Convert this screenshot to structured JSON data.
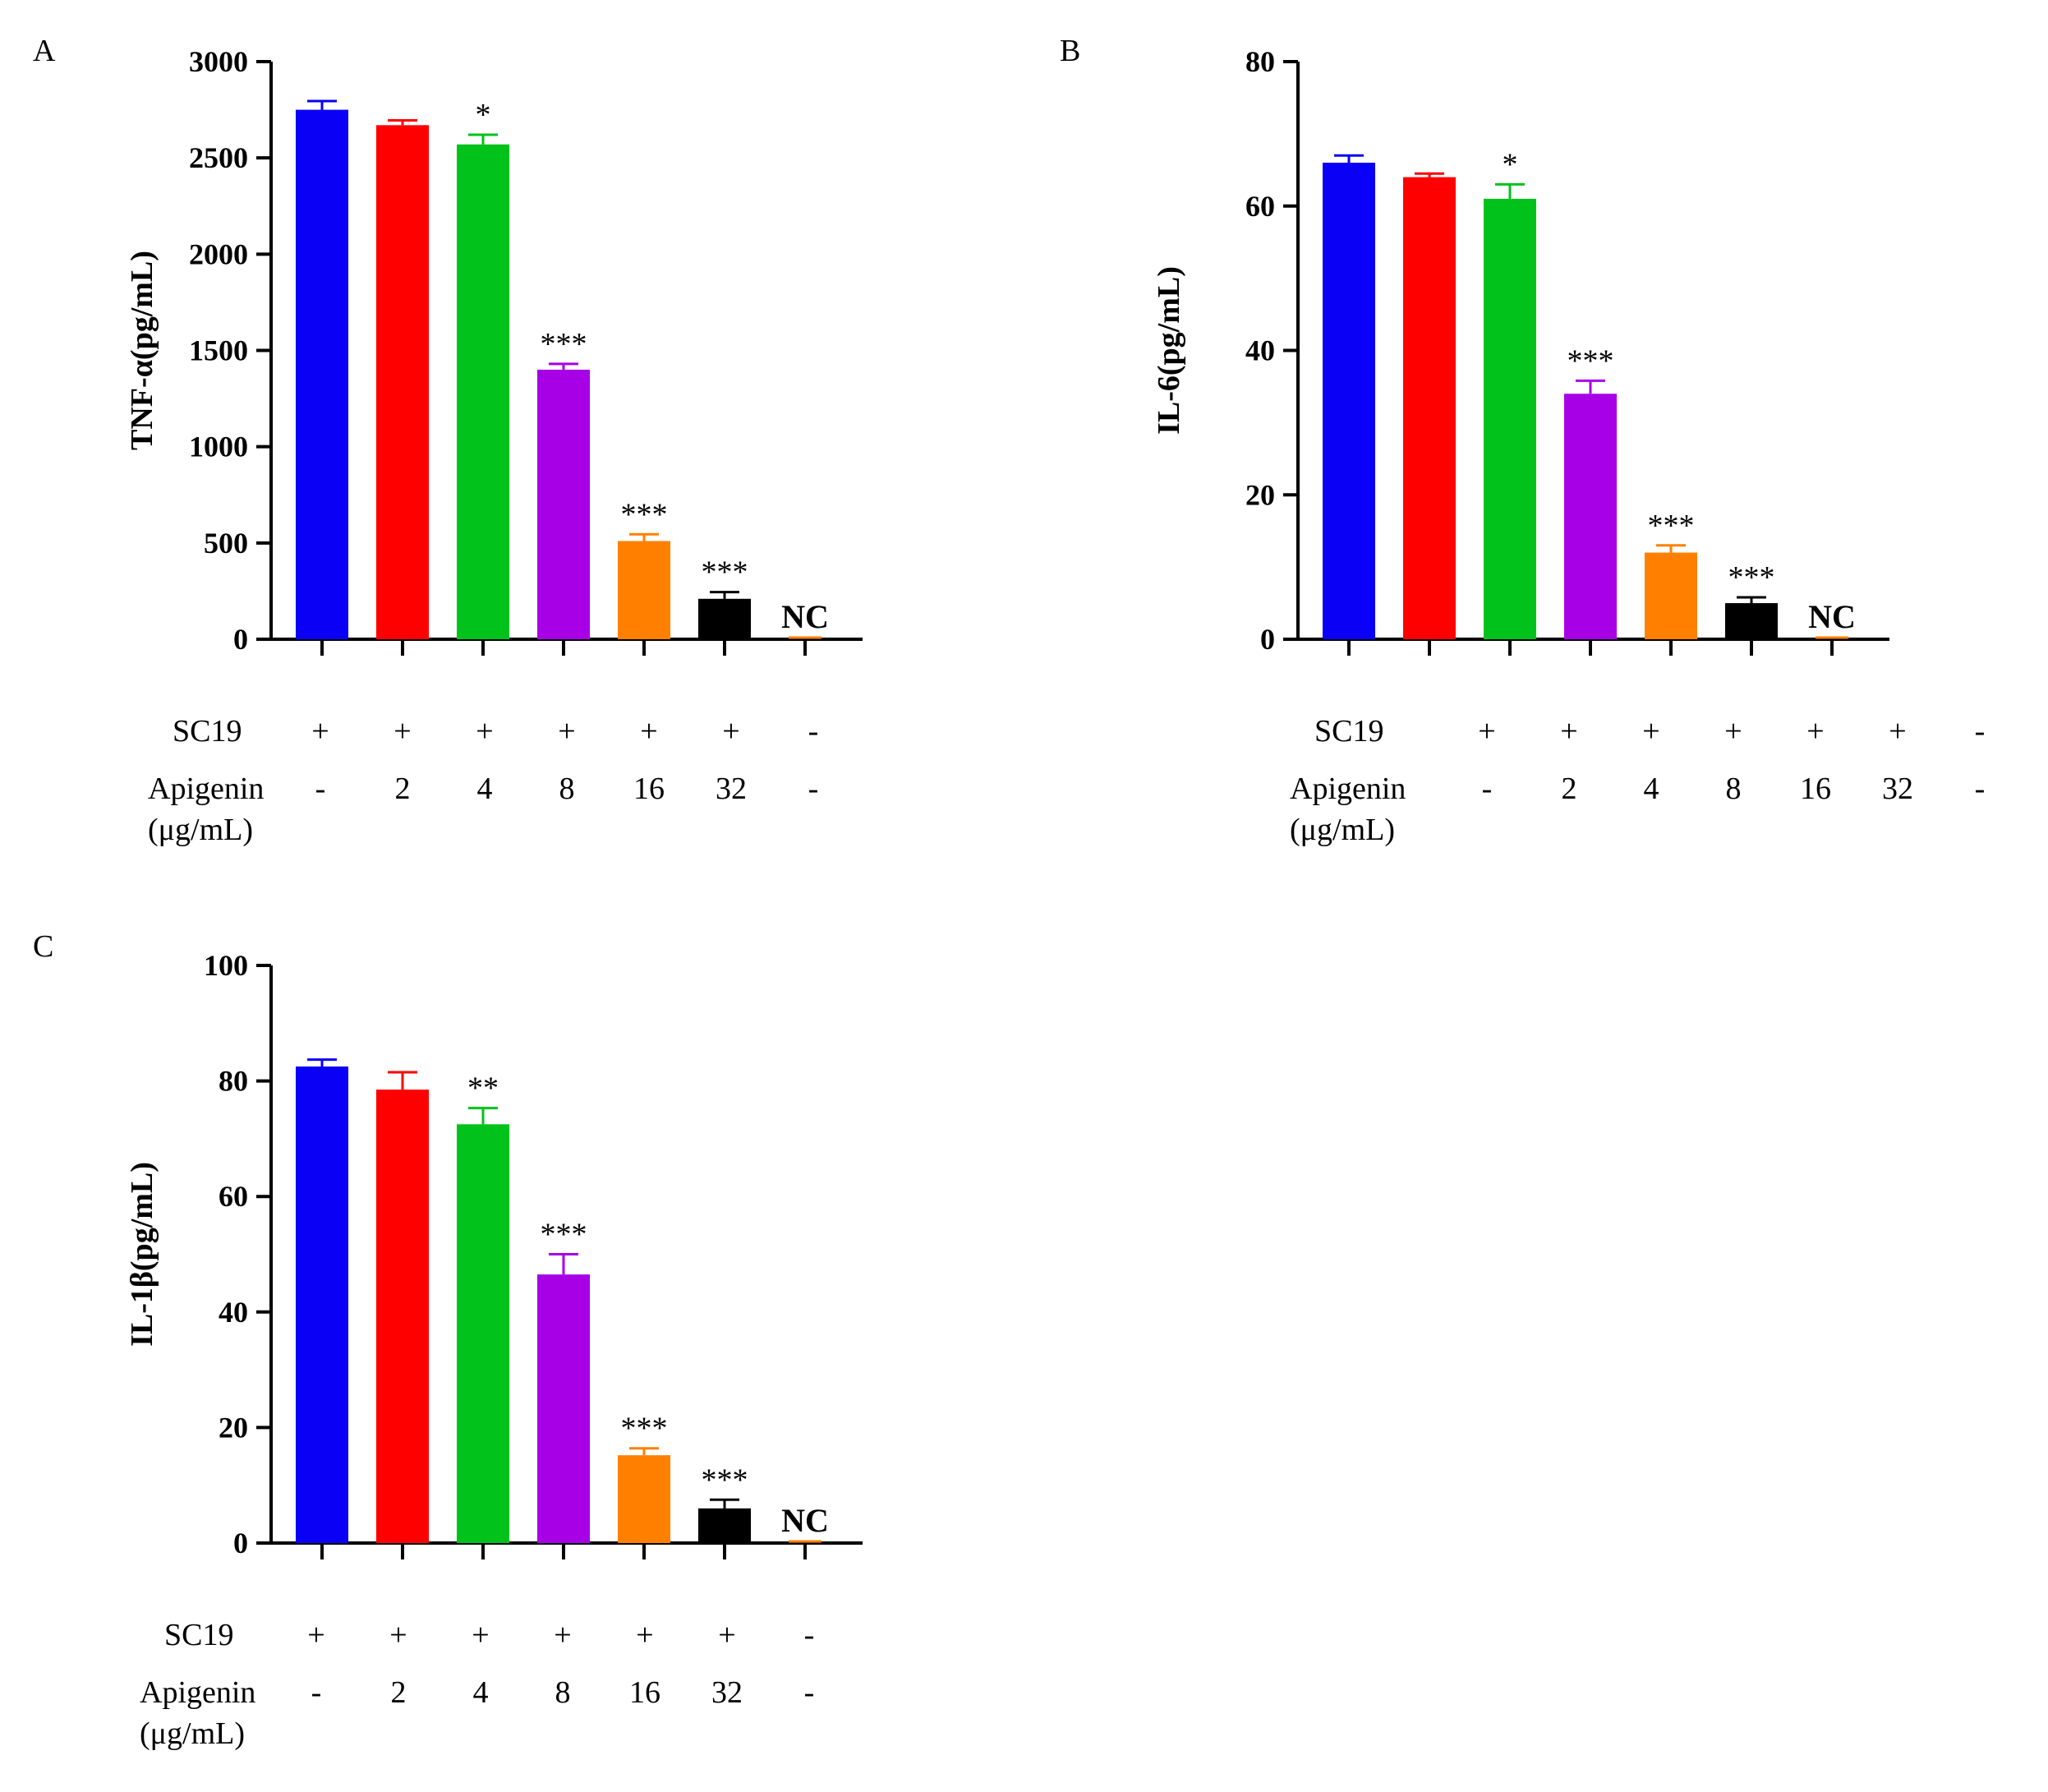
{
  "panel_letters": [
    "A",
    "B",
    "C"
  ],
  "row_labels": {
    "sc19": "SC19",
    "apigenin": "Apigenin",
    "apigenin_unit": "(μg/mL)"
  },
  "sc19_values": [
    "+",
    "+",
    "+",
    "+",
    "+",
    "+",
    "-"
  ],
  "apigenin_values": [
    "-",
    "2",
    "4",
    "8",
    "16",
    "32",
    "-"
  ],
  "colors": [
    "#0a00f5",
    "#ff0000",
    "#00c21a",
    "#a800e6",
    "#ff8000",
    "#000000",
    "#ff8000"
  ],
  "chart_data": [
    {
      "type": "bar",
      "panel": "A",
      "ylabel": "TNF-α(pg/mL)",
      "ylim": [
        0,
        3000
      ],
      "yticks": [
        0,
        500,
        1000,
        1500,
        2000,
        2500,
        3000
      ],
      "categories": [
        "SC19 + Apigenin -",
        "SC19 + Apigenin 2",
        "SC19 + Apigenin 4",
        "SC19 + Apigenin 8",
        "SC19 + Apigenin 16",
        "SC19 + Apigenin 32",
        "NC"
      ],
      "values": [
        2750,
        2670,
        2570,
        1400,
        510,
        210,
        0
      ],
      "errors": [
        45,
        25,
        50,
        30,
        35,
        35,
        0
      ],
      "significance": [
        "",
        "",
        "*",
        "***",
        "***",
        "***",
        ""
      ],
      "bar_text": [
        "",
        "",
        "",
        "",
        "",
        "",
        "NC"
      ]
    },
    {
      "type": "bar",
      "panel": "B",
      "ylabel": "IL-6(pg/mL)",
      "ylim": [
        0,
        80
      ],
      "yticks": [
        0,
        20,
        40,
        60,
        80
      ],
      "categories": [
        "SC19 + Apigenin -",
        "SC19 + Apigenin 2",
        "SC19 + Apigenin 4",
        "SC19 + Apigenin 8",
        "SC19 + Apigenin 16",
        "SC19 + Apigenin 32",
        "NC"
      ],
      "values": [
        66,
        64,
        61,
        34,
        12,
        5,
        0
      ],
      "errors": [
        1.0,
        0.5,
        2.0,
        1.8,
        1.0,
        0.8,
        0
      ],
      "significance": [
        "",
        "",
        "*",
        "***",
        "***",
        "***",
        ""
      ],
      "bar_text": [
        "",
        "",
        "",
        "",
        "",
        "",
        "NC"
      ]
    },
    {
      "type": "bar",
      "panel": "C",
      "ylabel": "IL-1β(pg/mL)",
      "ylim": [
        0,
        100
      ],
      "yticks": [
        0,
        20,
        40,
        60,
        80,
        100
      ],
      "categories": [
        "SC19 + Apigenin -",
        "SC19 + Apigenin 2",
        "SC19 + Apigenin 4",
        "SC19 + Apigenin 8",
        "SC19 + Apigenin 16",
        "SC19 + Apigenin 32",
        "NC"
      ],
      "values": [
        82.5,
        78.5,
        72.5,
        46.5,
        15.2,
        6.0,
        0
      ],
      "errors": [
        1.2,
        3.0,
        2.8,
        3.5,
        1.2,
        1.5,
        0
      ],
      "significance": [
        "",
        "",
        "**",
        "***",
        "***",
        "***",
        ""
      ],
      "bar_text": [
        "",
        "",
        "",
        "",
        "",
        "",
        "NC"
      ]
    }
  ]
}
